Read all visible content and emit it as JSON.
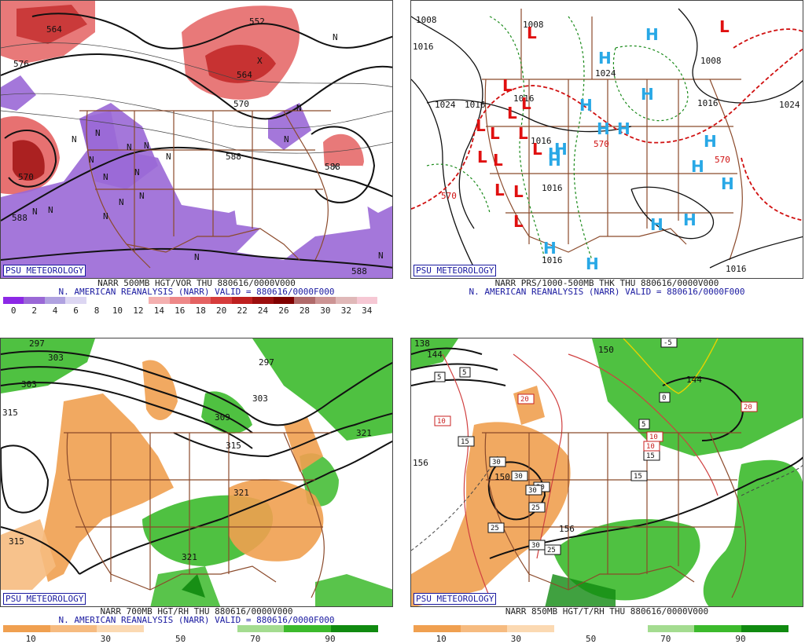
{
  "brand": "PSU METEOROLOGY",
  "panels": [
    {
      "id": "vor500",
      "line1": "NARR 500MB HGT/VOR THU 880616/0000V000",
      "line2": "N. AMERICAN REANALYSIS (NARR) VALID = 880616/0000F000",
      "colorbar": {
        "colors": [
          "#8c28e6",
          "#9a68d6",
          "#b0a2e0",
          "#dcd6f2",
          "#ffffff",
          "#ffffff",
          "#ffffff",
          "#f4b0b0",
          "#ee8888",
          "#e46262",
          "#d63c3c",
          "#be2020",
          "#9c0e0e",
          "#800000",
          "#b06a6a",
          "#cc9494",
          "#e0b8b8",
          "#f6c8d4"
        ],
        "ticks": [
          "0",
          "2",
          "4",
          "6",
          "8",
          "10",
          "12",
          "14",
          "16",
          "18",
          "20",
          "22",
          "24",
          "26",
          "28",
          "30",
          "32",
          "34"
        ]
      },
      "contour_labels": [
        "564",
        "552",
        "576",
        "588",
        "588",
        "588",
        "570",
        "588",
        "570",
        "564"
      ],
      "markers": [
        "N",
        "N",
        "N",
        "N",
        "N",
        "N",
        "N",
        "N",
        "N",
        "N",
        "N",
        "N",
        "N",
        "N",
        "N",
        "N",
        "N",
        "N",
        "X",
        "X"
      ]
    },
    {
      "id": "thk",
      "line1": "NARR PRS/1000-500MB THK THU 880616/0000V000",
      "line2": "N. AMERICAN REANALYSIS (NARR) VALID = 880616/0000F000",
      "contour_labels": [
        "1008",
        "1016",
        "1008",
        "1024",
        "1024",
        "1016",
        "1016",
        "1016",
        "1016",
        "1008",
        "1016",
        "1016",
        "1024",
        "1016"
      ],
      "thk_labels": [
        "570",
        "570",
        "570"
      ],
      "lows": [
        "L",
        "L",
        "L",
        "L",
        "L",
        "L",
        "L",
        "L",
        "L",
        "L",
        "L",
        "L",
        "L",
        "L"
      ],
      "highs": [
        "H",
        "H",
        "H",
        "H",
        "H",
        "H",
        "H",
        "H",
        "H",
        "H",
        "H",
        "H",
        "H",
        "H",
        "H",
        "H"
      ]
    },
    {
      "id": "rh700",
      "line1": "NARR 700MB HGT/RH THU 880616/0000V000",
      "line2": "N. AMERICAN REANALYSIS (NARR) VALID = 880616/0000F000",
      "colorbar": {
        "colors": [
          "#f0a050",
          "#f6bb80",
          "#fbd9b2",
          "#ffffff",
          "#ffffff",
          "#a4dc90",
          "#3cba2c",
          "#108a10"
        ],
        "ticks": [
          "10",
          "30",
          "50",
          "70",
          "90"
        ]
      },
      "contour_labels": [
        "297",
        "303",
        "303",
        "315",
        "297",
        "303",
        "309",
        "315",
        "321",
        "321",
        "315",
        "321"
      ]
    },
    {
      "id": "t850",
      "line1": "NARR 850MB HGT/T/RH THU 880616/0000V000",
      "colorbar": {
        "colors": [
          "#f0a050",
          "#f6bb80",
          "#fbd9b2",
          "#ffffff",
          "#ffffff",
          "#a4dc90",
          "#3cba2c",
          "#108a10"
        ],
        "ticks": [
          "10",
          "30",
          "50",
          "70",
          "90"
        ]
      },
      "contour_labels": [
        "138",
        "144",
        "150",
        "144",
        "156",
        "150",
        "156"
      ],
      "boxed_labels": [
        "5",
        "5",
        "5",
        "15",
        "15",
        "15",
        "20",
        "20",
        "10",
        "10",
        "10",
        "30",
        "30",
        "30",
        "30",
        "25",
        "25",
        "25",
        "30",
        "-5",
        "0"
      ]
    }
  ]
}
